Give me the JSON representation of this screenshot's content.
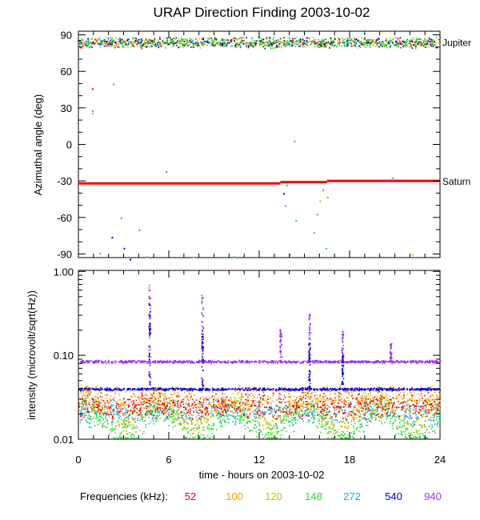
{
  "title": "URAP Direction Finding  2003-10-02",
  "chart_data": [
    {
      "type": "scatter",
      "name": "azimuth",
      "ylabel": "Azimuthal angle (deg)",
      "ylim": [
        -93,
        93
      ],
      "xlim": [
        0,
        24
      ],
      "yticks": [
        90,
        60,
        30,
        0,
        -30,
        -60,
        -90
      ],
      "annotations": [
        {
          "label": "Jupiter",
          "y": 84
        },
        {
          "label": "Saturn",
          "y": -30
        }
      ],
      "series": [
        {
          "name": "Saturn (red trace)",
          "color": "#ff0000",
          "segments": [
            {
              "x": [
                0,
                13.4
              ],
              "y": -32
            },
            {
              "x": [
                13.4,
                16.5
              ],
              "y": -31
            },
            {
              "x": [
                16.5,
                24
              ],
              "y": -30
            }
          ]
        },
        {
          "name": "Jupiter band",
          "y_center": 84,
          "y_spread": 5,
          "x": [
            0,
            24
          ]
        }
      ]
    },
    {
      "type": "scatter",
      "name": "intensity",
      "yscale": "log",
      "ylabel": "intensity (microvolt/sqrt(Hz))",
      "ylim": [
        0.01,
        1.0
      ],
      "xlim": [
        0,
        24
      ],
      "xticks": [
        0,
        6,
        12,
        18,
        24
      ],
      "yticks": [
        "1.00",
        "0.10",
        "0.01"
      ],
      "xlabel": "time - hours on 2003-10-02",
      "series": [
        {
          "name": "940",
          "baseline": 0.085,
          "spikes": [
            {
              "x": 4.7,
              "peak": 0.7
            },
            {
              "x": 8.2,
              "peak": 0.55
            },
            {
              "x": 13.4,
              "peak": 0.22
            },
            {
              "x": 15.3,
              "peak": 0.32
            },
            {
              "x": 17.5,
              "peak": 0.2
            },
            {
              "x": 20.7,
              "peak": 0.14
            }
          ]
        },
        {
          "name": "540",
          "baseline": 0.04,
          "spikes": [
            {
              "x": 4.7,
              "peak": 0.45
            },
            {
              "x": 8.2,
              "peak": 0.2
            },
            {
              "x": 15.3,
              "peak": 0.15
            },
            {
              "x": 17.5,
              "peak": 0.1
            }
          ]
        },
        {
          "name": "272",
          "baseline": 0.021
        },
        {
          "name": "148",
          "baseline": 0.016
        },
        {
          "name": "120",
          "baseline": 0.022
        },
        {
          "name": "100",
          "baseline": 0.03
        },
        {
          "name": "52",
          "baseline": 0.025
        }
      ]
    }
  ],
  "legend": {
    "label": "Frequencies (kHz):",
    "items": [
      {
        "value": "52",
        "color": "#ee0000"
      },
      {
        "value": "100",
        "color": "#ff9900"
      },
      {
        "value": "120",
        "color": "#ccbb00"
      },
      {
        "value": "148",
        "color": "#22dd22"
      },
      {
        "value": "272",
        "color": "#11aaee"
      },
      {
        "value": "540",
        "color": "#0000dd"
      },
      {
        "value": "940",
        "color": "#9933ee"
      }
    ]
  }
}
